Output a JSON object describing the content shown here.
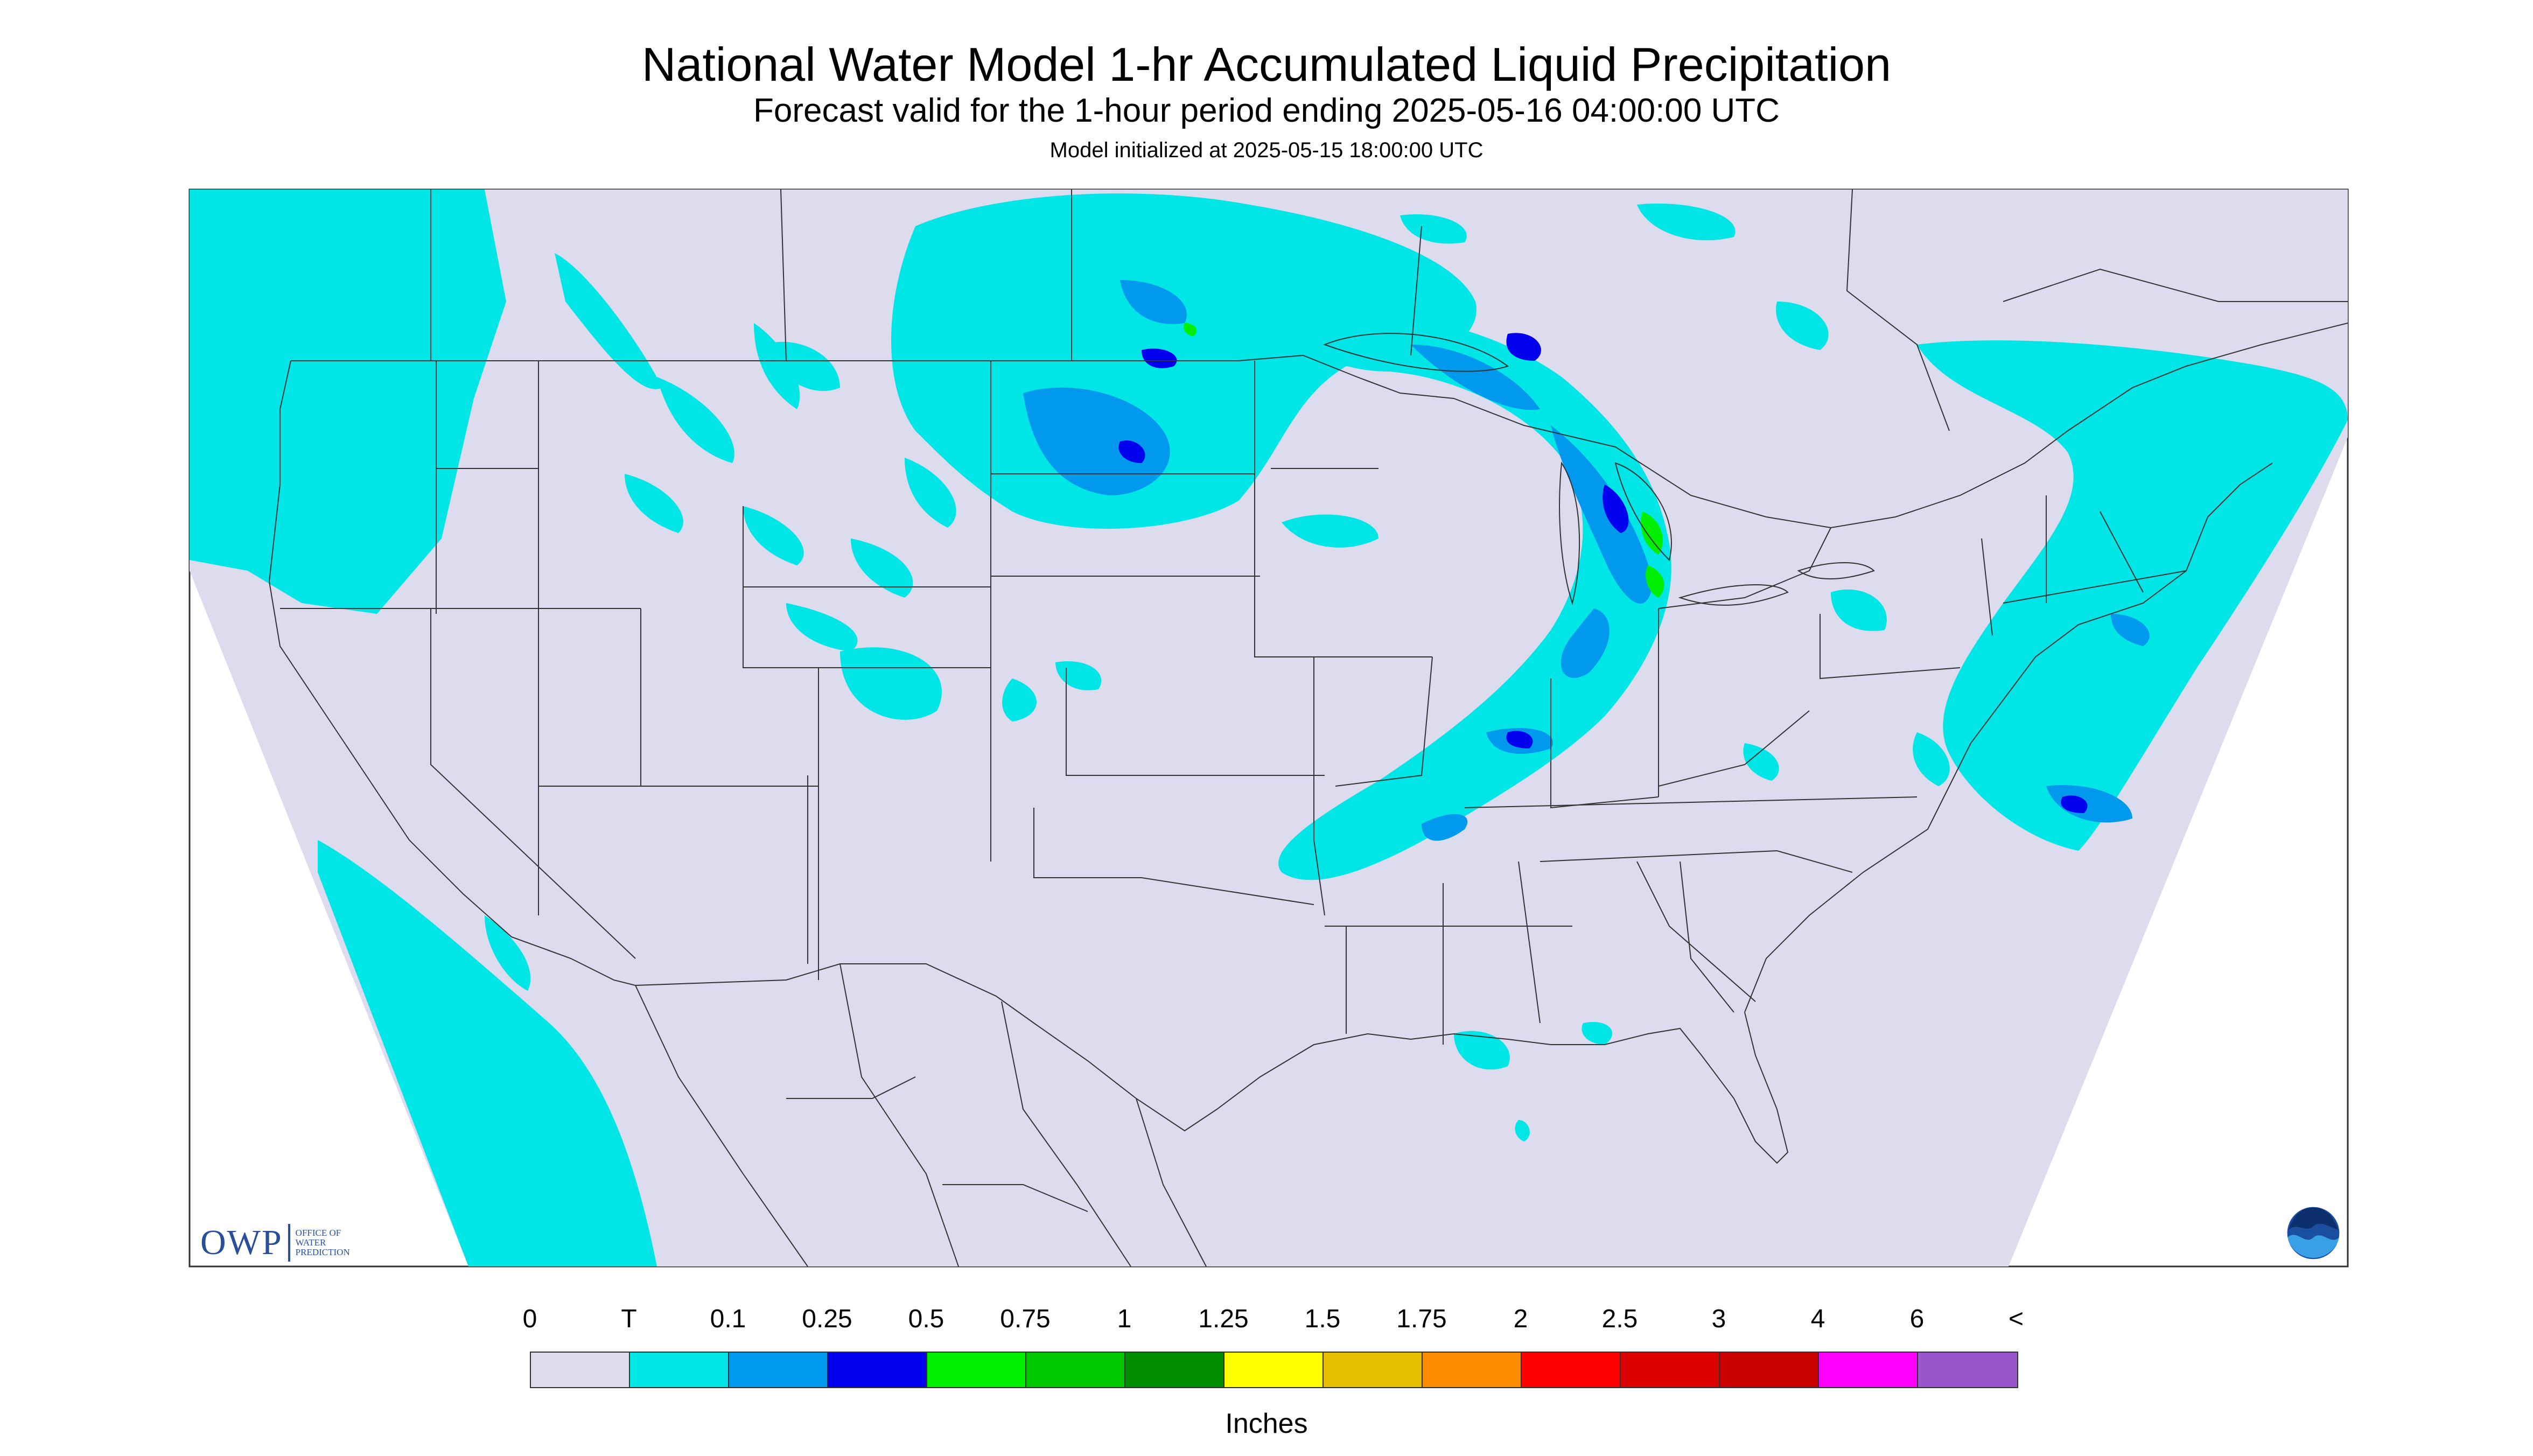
{
  "header": {
    "title": "National Water Model 1-hr Accumulated Liquid Precipitation",
    "subtitle": "Forecast valid for the 1-hour period ending 2025-05-16 04:00:00 UTC",
    "init": "Model initialized at 2025-05-15 18:00:00 UTC"
  },
  "colors": {
    "background": "#dcdcee",
    "trace": "#00e5e5",
    "light_blue": "#0099ee",
    "blue": "#0000ee",
    "green": "#00ee00",
    "boundary": "#333333"
  },
  "logos": {
    "owp_text": "OWP",
    "owp_sub": "OFFICE OF\nWATER\nPREDICTION",
    "noaa_icon": "noaa-logo-icon"
  },
  "legend": {
    "labels": [
      "0",
      "T",
      "0.1",
      "0.25",
      "0.5",
      "0.75",
      "1",
      "1.25",
      "1.5",
      "1.75",
      "2",
      "2.5",
      "3",
      "4",
      "6",
      "<"
    ],
    "colors": [
      "#dcdcee",
      "#00e5e5",
      "#0099ee",
      "#0000ee",
      "#00ee00",
      "#00c800",
      "#008c00",
      "#ffff00",
      "#e6be00",
      "#ff8c00",
      "#ff0000",
      "#dc0000",
      "#c80000",
      "#ff00ff",
      "#9955cc"
    ],
    "units": "Inches"
  }
}
